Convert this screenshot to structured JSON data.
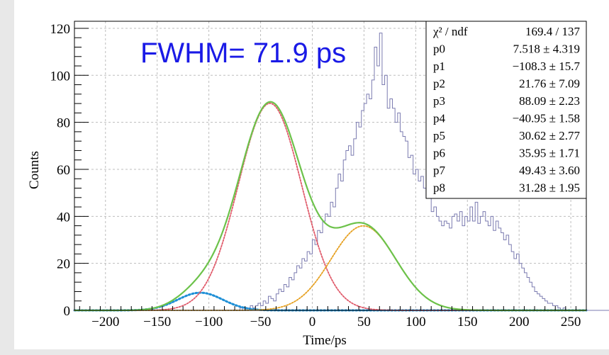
{
  "chart_data": {
    "type": "histogram",
    "xlabel": "Time/ps",
    "ylabel": "Counts",
    "xlim": [
      -230,
      265
    ],
    "ylim": [
      0,
      123
    ],
    "x_ticks": [
      -200,
      -150,
      -100,
      -50,
      0,
      50,
      100,
      150,
      200,
      250
    ],
    "y_ticks": [
      0,
      20,
      40,
      60,
      80,
      100,
      120
    ],
    "grid": true,
    "annotation": "FWHM= 71.9 ps",
    "stats_box": {
      "placement": "top-right",
      "header": {
        "label": "χ² / ndf",
        "value": "169.4 / 137"
      },
      "rows": [
        {
          "label": "p0",
          "value": "7.518 ± 4.319"
        },
        {
          "label": "p1",
          "value": "−108.3 ± 15.7"
        },
        {
          "label": "p2",
          "value": "21.76 ± 7.09"
        },
        {
          "label": "p3",
          "value": "88.09 ± 2.23"
        },
        {
          "label": "p4",
          "value": "−40.95 ± 1.58"
        },
        {
          "label": "p5",
          "value": "30.62 ± 2.77"
        },
        {
          "label": "p6",
          "value": "35.95 ± 1.71"
        },
        {
          "label": "p7",
          "value": "49.43 ± 3.60"
        },
        {
          "label": "p8",
          "value": "31.28 ± 1.95"
        }
      ]
    },
    "histogram": {
      "bin_start": -200,
      "bin_width": 2.5,
      "color": "#7b7bb0",
      "counts": [
        0,
        0,
        0,
        0,
        0,
        0,
        0,
        0,
        0,
        0,
        0,
        0,
        0,
        0,
        0,
        0,
        0,
        0,
        0,
        0,
        0,
        0,
        0,
        0,
        0,
        0,
        0,
        0,
        0,
        0,
        0,
        0,
        0,
        0,
        0,
        0,
        0,
        0,
        0,
        0,
        0,
        0,
        0,
        0,
        0,
        0,
        0,
        0,
        0,
        0,
        0,
        0,
        1,
        0,
        1,
        1,
        2,
        1,
        2,
        3,
        2,
        4,
        3,
        6,
        5,
        4,
        7,
        9,
        8,
        11,
        10,
        14,
        13,
        16,
        19,
        18,
        22,
        21,
        25,
        24,
        30,
        28,
        34,
        33,
        38,
        41,
        40,
        46,
        44,
        52,
        58,
        55,
        64,
        68,
        70,
        66,
        73,
        80,
        78,
        85,
        88,
        92,
        90,
        98,
        112,
        104,
        118,
        96,
        100,
        86,
        90,
        86,
        80,
        84,
        76,
        74,
        72,
        65,
        66,
        58,
        60,
        55,
        57,
        52,
        48,
        50,
        42,
        44,
        40,
        38,
        36,
        38,
        37,
        35,
        40,
        41,
        38,
        42,
        36,
        40,
        38,
        44,
        38,
        46,
        37,
        40,
        42,
        38,
        36,
        40,
        34,
        38,
        35,
        33,
        30,
        32,
        28,
        25,
        22,
        24,
        20,
        18,
        16,
        14,
        12,
        10,
        8,
        7,
        6,
        5,
        4,
        3,
        3,
        2,
        2,
        1,
        0,
        1,
        0,
        0,
        0,
        0,
        0,
        0,
        0,
        0,
        0,
        0,
        0,
        0,
        0,
        0,
        0,
        0,
        0,
        0,
        0,
        0,
        0,
        0,
        0,
        0,
        0,
        0,
        0,
        0,
        0,
        0,
        0,
        0
      ]
    },
    "components": [
      {
        "function": "gaus",
        "params": [
          "p0",
          "p1",
          "p2"
        ],
        "amplitude": 7.518,
        "mean": -108.3,
        "sigma": 21.76,
        "color": "#1e8fd6",
        "style": "dotted"
      },
      {
        "function": "gaus",
        "params": [
          "p3",
          "p4",
          "p5"
        ],
        "amplitude": 88.09,
        "mean": -40.95,
        "sigma": 30.62,
        "color": "#e05a6a",
        "style": "dotted"
      },
      {
        "function": "gaus",
        "params": [
          "p6",
          "p7",
          "p8"
        ],
        "amplitude": 35.95,
        "mean": 49.43,
        "sigma": 31.28,
        "color": "#e6a020",
        "style": "dotted"
      }
    ],
    "total_fit": {
      "color": "#6cc24a",
      "style": "solid"
    }
  }
}
